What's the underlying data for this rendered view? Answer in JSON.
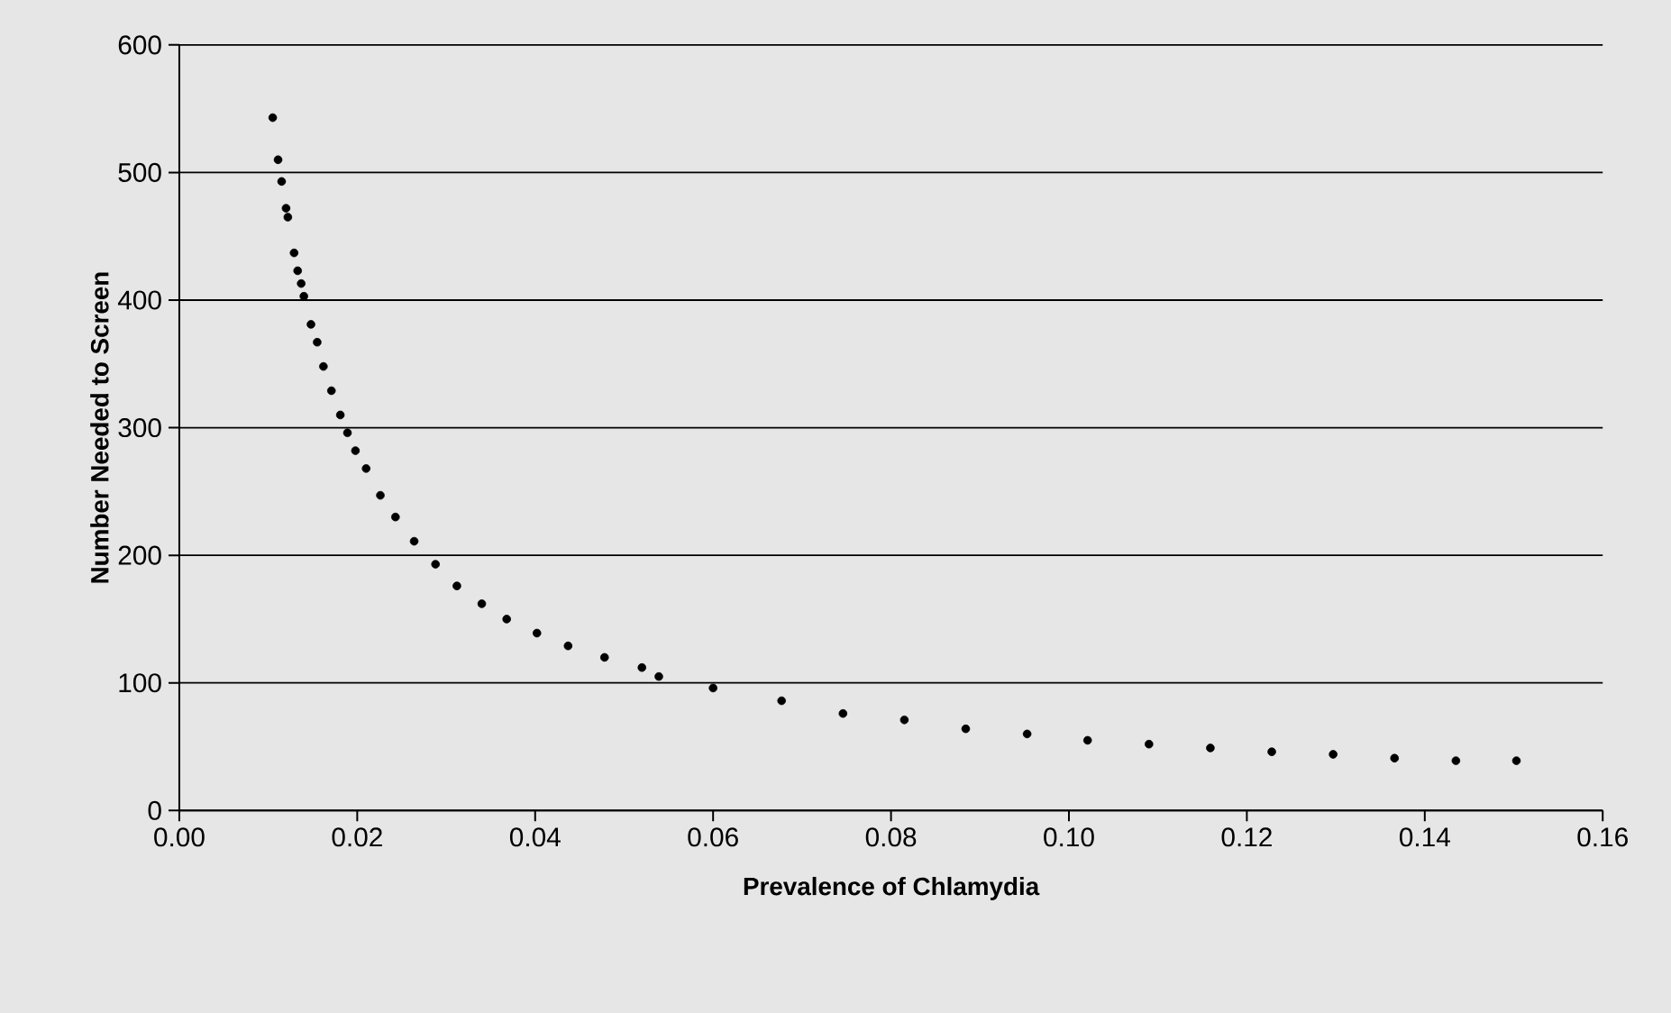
{
  "chart_data": {
    "type": "scatter",
    "xlabel": "Prevalence of Chlamydia",
    "ylabel": "Number Needed to Screen",
    "x": [
      0.0105,
      0.0111,
      0.0115,
      0.012,
      0.0122,
      0.0129,
      0.0133,
      0.0137,
      0.014,
      0.0148,
      0.0155,
      0.0162,
      0.0171,
      0.0181,
      0.0189,
      0.0198,
      0.021,
      0.0226,
      0.0243,
      0.0264,
      0.0288,
      0.0312,
      0.034,
      0.0368,
      0.0402,
      0.0437,
      0.0478,
      0.052,
      0.0539,
      0.06,
      0.0677,
      0.0746,
      0.0815,
      0.0884,
      0.0953,
      0.1021,
      0.109,
      0.1159,
      0.1228,
      0.1297,
      0.1366,
      0.1435,
      0.1503
    ],
    "series": [
      {
        "color": "#000000",
        "values": [
          543,
          510,
          493,
          472,
          465,
          437,
          423,
          413,
          403,
          381,
          367,
          348,
          329,
          310,
          296,
          282,
          268,
          247,
          230,
          211,
          193,
          176,
          162,
          150,
          139,
          129,
          120,
          112,
          105,
          96,
          86,
          76,
          71,
          64,
          60,
          55,
          52,
          49,
          46,
          44,
          41,
          39,
          39
        ]
      }
    ],
    "xlim": [
      0,
      0.16
    ],
    "ylim": [
      0,
      600
    ],
    "xticks": [
      {
        "value": 0,
        "label": "0.00"
      },
      {
        "value": 0.02,
        "label": "0.02"
      },
      {
        "value": 0.04,
        "label": "0.04"
      },
      {
        "value": 0.06,
        "label": "0.06"
      },
      {
        "value": 0.08,
        "label": "0.08"
      },
      {
        "value": 0.1,
        "label": "0.10"
      },
      {
        "value": 0.12,
        "label": "0.12"
      },
      {
        "value": 0.14,
        "label": "0.14"
      },
      {
        "value": 0.16,
        "label": "0.16"
      }
    ],
    "yticks": [
      0,
      100,
      200,
      300,
      400,
      500,
      600
    ],
    "grid": "y"
  }
}
